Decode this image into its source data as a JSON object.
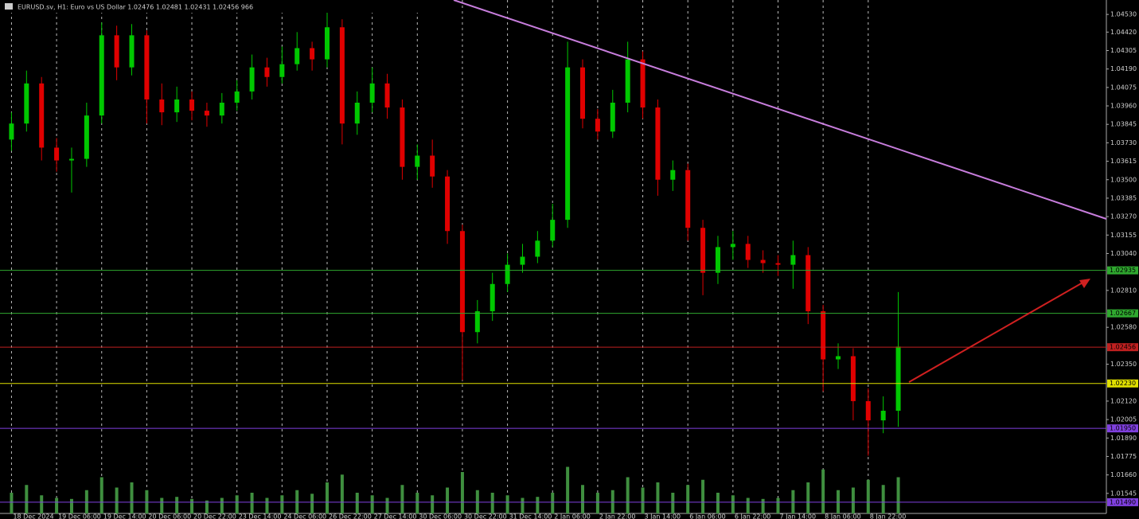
{
  "chart_data": {
    "type": "candlestick",
    "header": "EURUSD.sv, H1: Euro vs US Dollar 1.02476 1.02481 1.02431 1.02456 966",
    "categories": [
      "18 Dec 2024",
      null,
      null,
      "19 Dec 06:00",
      null,
      null,
      "19 Dec 14:00",
      null,
      null,
      "20 Dec 06:00",
      null,
      null,
      "20 Dec 22:00",
      null,
      null,
      "23 Dec 14:00",
      null,
      null,
      "24 Dec 06:00",
      null,
      null,
      "26 Dec 22:00",
      null,
      null,
      "27 Dec 14:00",
      null,
      null,
      "30 Dec 06:00",
      null,
      null,
      "30 Dec 22:00",
      null,
      null,
      "31 Dec 14:00",
      null,
      null,
      "2 Jan 06:00",
      null,
      null,
      "2 Jan 22:00",
      null,
      null,
      "3 Jan 14:00",
      null,
      null,
      "6 Jan 06:00",
      null,
      null,
      "6 Jan 22:00",
      null,
      null,
      "7 Jan 14:00",
      null,
      null,
      "8 Jan 06:00",
      null,
      null,
      "8 Jan 22:00",
      null,
      null
    ],
    "open": [
      1.0375,
      1.0385,
      1.041,
      1.037,
      1.0362,
      1.0363,
      1.039,
      1.044,
      1.042,
      1.044,
      1.04,
      1.0392,
      1.04,
      1.0393,
      1.039,
      1.0398,
      1.0405,
      1.042,
      1.0414,
      1.0422,
      1.0432,
      1.0425,
      1.0445,
      1.0385,
      1.0398,
      1.041,
      1.0395,
      1.0358,
      1.0365,
      1.0352,
      1.0318,
      1.0255,
      1.0268,
      1.0285,
      1.0297,
      1.0302,
      1.0312,
      1.0325,
      1.042,
      1.0388,
      1.038,
      1.0398,
      1.0425,
      1.0395,
      1.035,
      1.0356,
      1.032,
      1.0292,
      1.0308,
      1.031,
      1.03,
      1.0298,
      1.0297,
      1.0303,
      1.0268,
      1.0238,
      1.024,
      1.0212,
      1.02,
      1.0206
    ],
    "high": [
      1.0392,
      1.0418,
      1.0414,
      1.0376,
      1.037,
      1.0398,
      1.0448,
      1.0446,
      1.0447,
      1.0443,
      1.041,
      1.0408,
      1.0405,
      1.0398,
      1.0404,
      1.0412,
      1.0428,
      1.0426,
      1.0433,
      1.0442,
      1.0436,
      1.0455,
      1.045,
      1.0405,
      1.042,
      1.0416,
      1.04,
      1.0372,
      1.0375,
      1.0356,
      1.0322,
      1.0275,
      1.0292,
      1.0304,
      1.031,
      1.0318,
      1.0335,
      1.0436,
      1.0425,
      1.0394,
      1.0406,
      1.0436,
      1.043,
      1.04,
      1.0362,
      1.036,
      1.0325,
      1.0315,
      1.0318,
      1.0315,
      1.0306,
      1.0303,
      1.0312,
      1.0308,
      1.0272,
      1.0248,
      1.0245,
      1.022,
      1.0215,
      1.028
    ],
    "low": [
      1.0368,
      1.038,
      1.0362,
      1.0355,
      1.0342,
      1.0358,
      1.0385,
      1.0412,
      1.0415,
      1.0385,
      1.0384,
      1.0386,
      1.0387,
      1.0383,
      1.0385,
      1.0393,
      1.04,
      1.0408,
      1.041,
      1.0418,
      1.0418,
      1.042,
      1.0372,
      1.0378,
      1.0392,
      1.0388,
      1.035,
      1.035,
      1.0345,
      1.031,
      1.0225,
      1.0248,
      1.0262,
      1.028,
      1.0292,
      1.0298,
      1.0308,
      1.032,
      1.0382,
      1.0375,
      1.0376,
      1.0392,
      1.0388,
      1.034,
      1.0343,
      1.0312,
      1.0278,
      1.0285,
      1.03,
      1.0295,
      1.0292,
      1.029,
      1.0282,
      1.026,
      1.0218,
      1.0232,
      1.02,
      1.0178,
      1.0192,
      1.0196
    ],
    "close": [
      1.0385,
      1.041,
      1.037,
      1.0362,
      1.0363,
      1.039,
      1.044,
      1.042,
      1.044,
      1.04,
      1.0392,
      1.04,
      1.0393,
      1.039,
      1.0398,
      1.0405,
      1.042,
      1.0414,
      1.0422,
      1.0432,
      1.0425,
      1.0445,
      1.0385,
      1.0398,
      1.041,
      1.0395,
      1.0358,
      1.0365,
      1.0352,
      1.0318,
      1.0255,
      1.0268,
      1.0285,
      1.0297,
      1.0302,
      1.0312,
      1.0325,
      1.042,
      1.0388,
      1.038,
      1.0398,
      1.0425,
      1.0395,
      1.035,
      1.0356,
      1.032,
      1.0292,
      1.0308,
      1.031,
      1.03,
      1.0298,
      1.0297,
      1.0303,
      1.0268,
      1.0238,
      1.024,
      1.0212,
      1.02,
      1.0206,
      1.0246
    ],
    "volume": [
      40,
      55,
      35,
      30,
      28,
      45,
      70,
      50,
      60,
      45,
      30,
      32,
      28,
      25,
      30,
      35,
      40,
      30,
      35,
      45,
      38,
      60,
      75,
      40,
      35,
      30,
      55,
      40,
      35,
      50,
      80,
      45,
      40,
      35,
      30,
      32,
      40,
      90,
      55,
      40,
      45,
      70,
      50,
      60,
      40,
      55,
      65,
      40,
      35,
      30,
      28,
      30,
      45,
      60,
      85,
      45,
      50,
      65,
      55,
      70
    ],
    "volume_ylim": [
      0,
      100
    ],
    "up_color": "#00c800",
    "down_color": "#e00000",
    "volume_color": "#3f8f3f",
    "ylim": [
      1.0142,
      1.0462
    ],
    "yticks": [
      {
        "value": 1.0453,
        "label": "1.04530"
      },
      {
        "value": 1.0442,
        "label": "1.04420"
      },
      {
        "value": 1.04305,
        "label": "1.04305"
      },
      {
        "value": 1.0419,
        "label": "1.04190"
      },
      {
        "value": 1.04075,
        "label": "1.04075"
      },
      {
        "value": 1.0396,
        "label": "1.03960"
      },
      {
        "value": 1.03845,
        "label": "1.03845"
      },
      {
        "value": 1.0373,
        "label": "1.03730"
      },
      {
        "value": 1.03615,
        "label": "1.03615"
      },
      {
        "value": 1.035,
        "label": "1.03500"
      },
      {
        "value": 1.03385,
        "label": "1.03385"
      },
      {
        "value": 1.0327,
        "label": "1.03270"
      },
      {
        "value": 1.03155,
        "label": "1.03155"
      },
      {
        "value": 1.0304,
        "label": "1.03040"
      },
      {
        "value": 1.0281,
        "label": "1.02810"
      },
      {
        "value": 1.0258,
        "label": "1.02580"
      },
      {
        "value": 1.0235,
        "label": "1.02350"
      },
      {
        "value": 1.0212,
        "label": "1.02120"
      },
      {
        "value": 1.02005,
        "label": "1.02005"
      },
      {
        "value": 1.0189,
        "label": "1.01890"
      },
      {
        "value": 1.01775,
        "label": "1.01775"
      },
      {
        "value": 1.0166,
        "label": "1.01660"
      },
      {
        "value": 1.01545,
        "label": "1.01545"
      }
    ],
    "levels": [
      {
        "value": 1.02935,
        "label": "1.02935",
        "color": "#2fa82f"
      },
      {
        "value": 1.02667,
        "label": "1.02667",
        "color": "#2fa82f"
      },
      {
        "value": 1.02456,
        "label": "1.02456",
        "color": "#c02020"
      },
      {
        "value": 1.0223,
        "label": "1.02230",
        "color": "#e0e000"
      },
      {
        "value": 1.0195,
        "label": "1.01950",
        "color": "#8040e0"
      },
      {
        "value": 1.0149,
        "label": "1.01490",
        "color": "#8040e0"
      }
    ]
  }
}
